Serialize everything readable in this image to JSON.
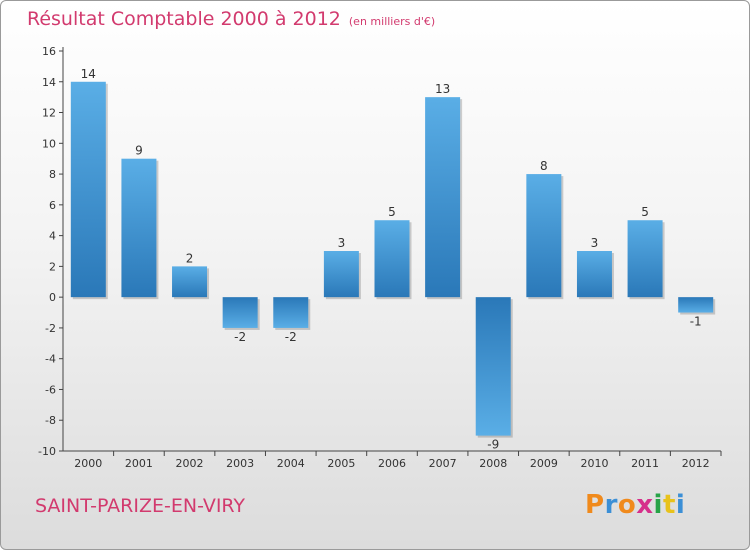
{
  "header": {
    "title": "Résultat Comptable 2000 à 2012",
    "subtitle": "(en milliers d'€)"
  },
  "footer": {
    "commune": "SAINT-PARIZE-EN-VIRY",
    "logo": {
      "letters": [
        "P",
        "r",
        "o",
        "x",
        "i",
        "t",
        "i"
      ],
      "colors": [
        "#f08a1c",
        "#3b8fd6",
        "#f08a1c",
        "#d6308b",
        "#27a347",
        "#e8c21b",
        "#3b8fd6"
      ]
    }
  },
  "colors": {
    "text_accent": "#d23a6e",
    "bar_light": "#5aaee6",
    "bar_dark": "#2a78b8"
  },
  "chart_data": {
    "type": "bar",
    "title": "Résultat Comptable 2000 à 2012",
    "subtitle": "(en milliers d'€)",
    "categories": [
      "2000",
      "2001",
      "2002",
      "2003",
      "2004",
      "2005",
      "2006",
      "2007",
      "2008",
      "2009",
      "2010",
      "2011",
      "2012"
    ],
    "values": [
      14,
      9,
      2,
      -2,
      -2,
      3,
      5,
      13,
      -9,
      8,
      3,
      5,
      -1
    ],
    "ylim": [
      -10,
      16
    ],
    "yticks": [
      -10,
      -8,
      -6,
      -4,
      -2,
      0,
      2,
      4,
      6,
      8,
      10,
      12,
      14,
      16
    ],
    "grid": false,
    "legend": "none"
  }
}
